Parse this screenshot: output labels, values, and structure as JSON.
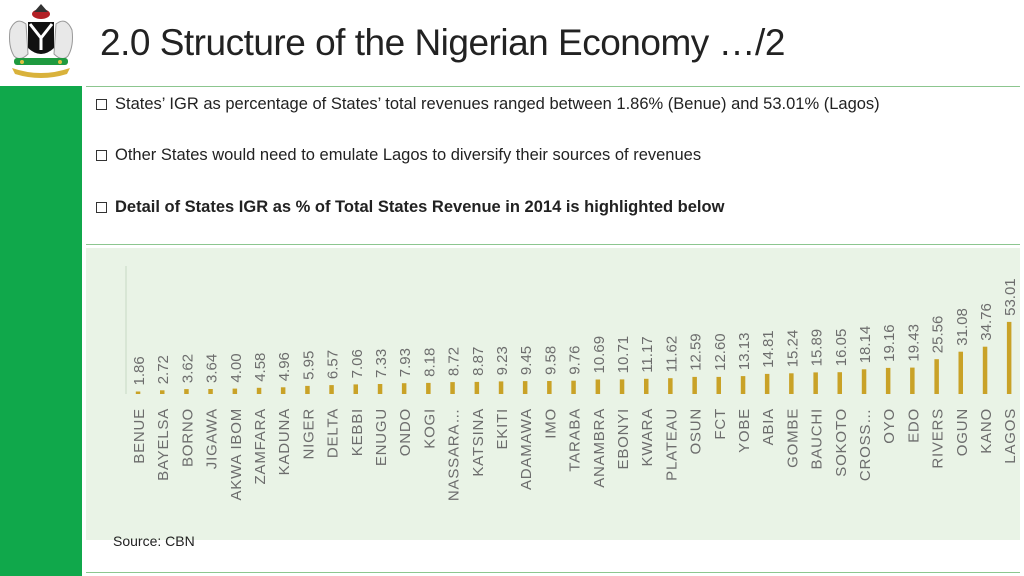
{
  "header": {
    "title": "2.0 Structure of the Nigerian Economy …/2"
  },
  "bullets": [
    "States’ IGR as percentage of States’ total revenues ranged between 1.86% (Benue) and 53.01% (Lagos)",
    "Other States would need to emulate Lagos  to diversify their sources of revenues",
    "Detail of States IGR as % of Total States Revenue in 2014 is highlighted below"
  ],
  "footer": {
    "source": "Source: CBN"
  },
  "colors": {
    "sidebar": "#10a84b",
    "bar": "#c9a227",
    "panel": "#e9f3e6",
    "label": "#6d6d6d"
  },
  "chart_data": {
    "type": "bar",
    "title": "States IGR as % of Total States Revenue in 2014",
    "categories": [
      "BENUE",
      "BAYELSA",
      "BORNO",
      "JIGAWA",
      "AKWA  IBOM",
      "ZAMFARA",
      "KADUNA",
      "NIGER",
      "DELTA",
      "KEBBI",
      "ENUGU",
      "ONDO",
      "KOGI",
      "NASSARA…",
      "KATSINA",
      "EKITI",
      "ADAMAWA",
      "IMO",
      "TARABA",
      "ANAMBRA",
      "EBONYI",
      "KWARA",
      "PLATEAU",
      "OSUN",
      "FCT",
      "YOBE",
      "ABIA",
      "GOMBE",
      "BAUCHI",
      "SOKOTO",
      "CROSS…",
      "OYO",
      "EDO",
      "RIVERS",
      "OGUN",
      "KANO",
      "LAGOS"
    ],
    "values": [
      1.86,
      2.72,
      3.62,
      3.64,
      4.0,
      4.58,
      4.96,
      5.95,
      6.57,
      7.06,
      7.33,
      7.93,
      8.18,
      8.72,
      8.87,
      9.23,
      9.45,
      9.58,
      9.76,
      10.69,
      10.71,
      11.17,
      11.62,
      12.59,
      12.6,
      13.13,
      14.81,
      15.24,
      15.89,
      16.05,
      18.14,
      19.16,
      19.43,
      25.56,
      31.08,
      34.76,
      53.01
    ],
    "value_labels": [
      "1.86",
      "2.72",
      "3.62",
      "3.64",
      "4.00",
      "4.58",
      "4.96",
      "5.95",
      "6.57",
      "7.06",
      "7.33",
      "7.93",
      "8.18",
      "8.72",
      "8.87",
      "9.23",
      "9.45",
      "9.58",
      "9.76",
      "10.69",
      "10.71",
      "11.17",
      "11.62",
      "12.59",
      "12.60",
      "13.13",
      "14.81",
      "15.24",
      "15.89",
      "16.05",
      "18.14",
      "19.16",
      "19.43",
      "25.56",
      "31.08",
      "34.76",
      "53.01"
    ],
    "xlabel": "",
    "ylabel": "",
    "ylim": [
      0,
      100
    ],
    "grid": false,
    "legend": "none"
  }
}
